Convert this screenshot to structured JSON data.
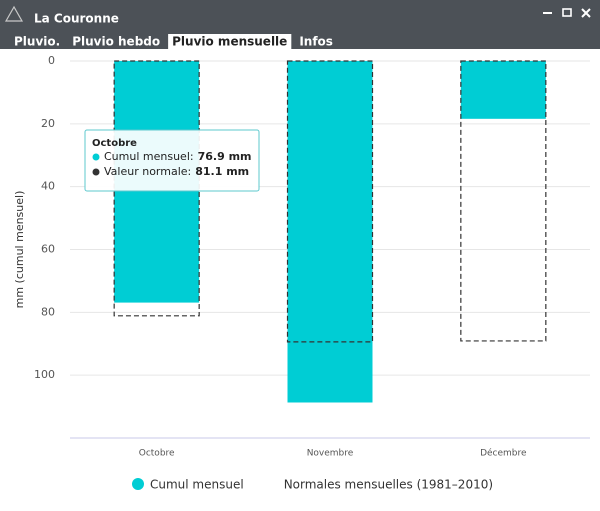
{
  "window": {
    "title": "La Couronne"
  },
  "tabs": [
    "Pluvio.",
    "Pluvio hebdo",
    "Pluvio mensuelle",
    "Infos"
  ],
  "selected_tab": 2,
  "chart_data": {
    "type": "bar",
    "y_label": "mm (cumul mensuel)",
    "categories": [
      "Octobre",
      "Novembre",
      "Décembre"
    ],
    "series": [
      {
        "name": "Cumul mensuel",
        "color": "#00cdd4",
        "style": "filled",
        "values": [
          76.9,
          108.7,
          18.4
        ]
      },
      {
        "name": "Normales mensuelles (1981–2010)",
        "color": "#333333",
        "style": "dashed",
        "values": [
          81.1,
          89.4,
          89.1
        ]
      }
    ],
    "ylim": [
      0,
      120
    ],
    "y_reversed": true,
    "yticks": [
      0,
      20,
      40,
      60,
      80,
      100
    ],
    "grid": true,
    "tooltip": {
      "title": "Octobre",
      "items": [
        {
          "label": "Cumul mensuel:",
          "value": "76.9 mm",
          "color": "#00cdd4"
        },
        {
          "label": "Valeur normale:",
          "value": "81.1 mm",
          "color": "#333333"
        }
      ]
    }
  }
}
